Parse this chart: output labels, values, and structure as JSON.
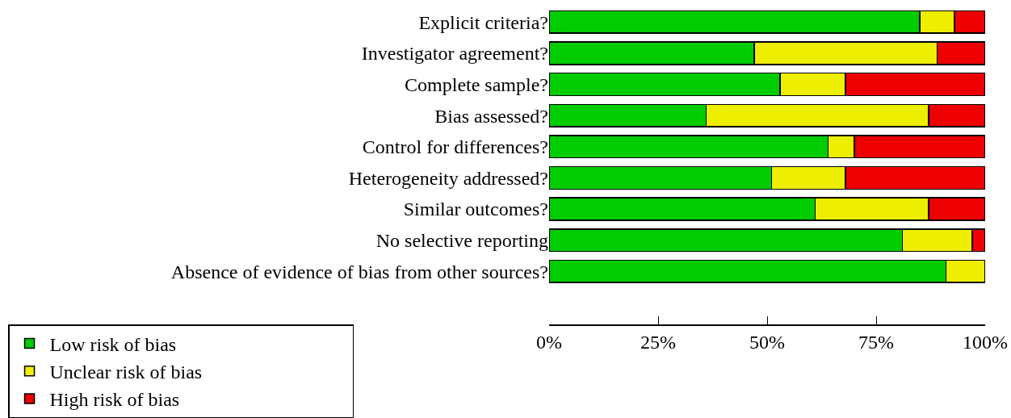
{
  "chart_data": {
    "type": "bar",
    "orientation": "horizontal",
    "stacked": true,
    "categories": [
      "Explicit criteria?",
      "Investigator agreement?",
      "Complete sample?",
      "Bias assessed?",
      "Control for differences?",
      "Heterogeneity addressed?",
      "Similar outcomes?",
      "No selective reporting",
      "Absence of evidence of bias from other sources?"
    ],
    "series": [
      {
        "name": "Low risk of bias",
        "color": "#00cc00",
        "values": [
          85,
          47,
          53,
          36,
          64,
          51,
          61,
          81,
          91
        ]
      },
      {
        "name": "Unclear risk of bias",
        "color": "#eeee00",
        "values": [
          8,
          42,
          15,
          51,
          6,
          17,
          26,
          16,
          9
        ]
      },
      {
        "name": "High risk of bias",
        "color": "#ee0000",
        "values": [
          7,
          11,
          32,
          13,
          30,
          32,
          13,
          3,
          null
        ]
      }
    ],
    "xlim": [
      0,
      100
    ],
    "xticks": [
      {
        "value": 0,
        "label": "0%"
      },
      {
        "value": 25,
        "label": "25%"
      },
      {
        "value": 50,
        "label": "50%"
      },
      {
        "value": 75,
        "label": "75%"
      },
      {
        "value": 100,
        "label": "100%"
      }
    ],
    "grid": false,
    "legend": "bottom"
  }
}
